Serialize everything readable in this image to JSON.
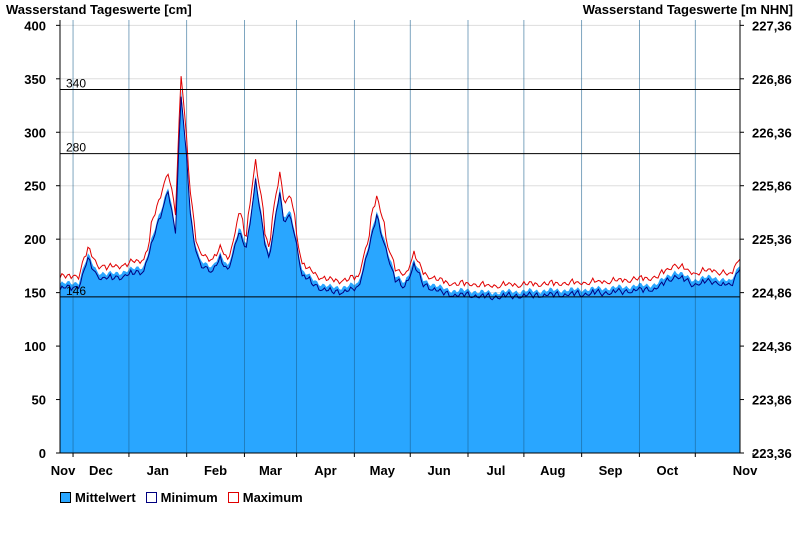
{
  "chart_data": {
    "type": "area",
    "title_left": "Wasserstand Tageswerte [cm]",
    "title_right": "Wasserstand Tageswerte [m NHN]",
    "ylim": [
      0,
      405
    ],
    "y_ticks": [
      0,
      50,
      100,
      150,
      200,
      250,
      300,
      350,
      400
    ],
    "y2_ticks": [
      "223,36",
      "223,86",
      "224,36",
      "224,86",
      "225,36",
      "225,86",
      "226,36",
      "226,86",
      "227,36"
    ],
    "x_tick_labels": [
      "Nov",
      "Dec",
      "Jan",
      "Feb",
      "Mar",
      "Apr",
      "May",
      "Jun",
      "Jul",
      "Aug",
      "Sep",
      "Oct",
      "Nov"
    ],
    "reference_lines": [
      {
        "value": 340,
        "label": "340"
      },
      {
        "value": 280,
        "label": "280"
      },
      {
        "value": 146,
        "label": "146"
      }
    ],
    "grid": true,
    "legend_position": "bottom-left",
    "colors": {
      "mean": "#29a6ff",
      "minimum": "#000080",
      "maximum": "#e00000",
      "reference": "#000000"
    },
    "series": [
      {
        "name": "Mittelwert",
        "key": "mean"
      },
      {
        "name": "Minimum",
        "key": "minimum"
      },
      {
        "name": "Maximum",
        "key": "maximum"
      }
    ],
    "mean_profile": {
      "x_day": [
        0,
        10,
        15,
        20,
        25,
        35,
        45,
        58,
        62,
        65,
        68,
        70,
        72,
        75,
        78,
        82,
        86,
        90,
        96,
        100,
        105,
        110,
        112,
        118,
        120,
        124,
        128,
        130,
        134,
        138,
        142,
        146,
        150,
        160,
        170,
        180,
        185,
        190,
        195,
        200,
        204,
        208,
        212,
        220,
        230,
        240,
        260,
        280,
        300,
        320,
        330,
        340,
        350,
        360,
        365
      ],
      "y": [
        158,
        160,
        185,
        170,
        167,
        170,
        175,
        250,
        210,
        340,
        280,
        230,
        200,
        180,
        178,
        175,
        185,
        175,
        210,
        195,
        260,
        200,
        185,
        250,
        220,
        225,
        190,
        170,
        165,
        160,
        157,
        155,
        155,
        158,
        225,
        165,
        160,
        180,
        162,
        158,
        155,
        153,
        152,
        152,
        150,
        151,
        152,
        153,
        155,
        158,
        170,
        162,
        165,
        160,
        178
      ]
    }
  },
  "legend": {
    "mean": "Mittelwert",
    "minimum": "Minimum",
    "maximum": "Maximum"
  }
}
